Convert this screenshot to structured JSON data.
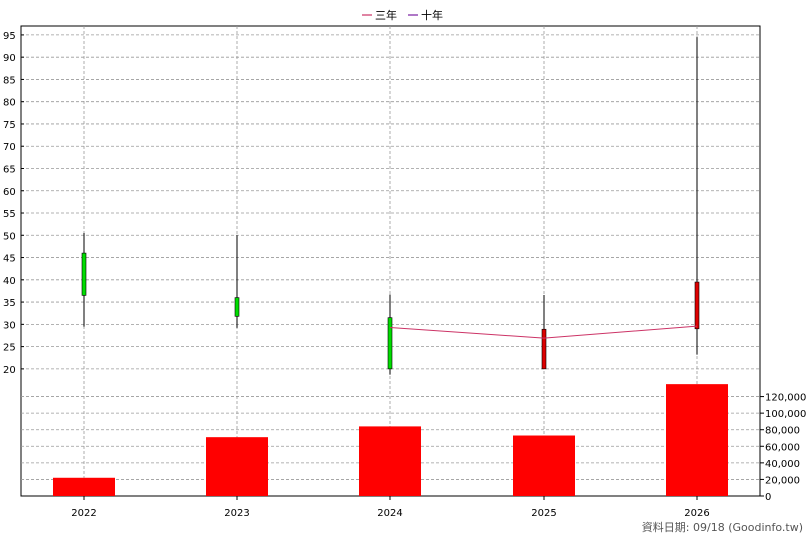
{
  "chart_data": {
    "type": "candlestick+bar",
    "legend": [
      {
        "label": "三年",
        "color": "#cc3366"
      },
      {
        "label": "十年",
        "color": "#7a1fa2"
      }
    ],
    "categories": [
      "2022",
      "2023",
      "2024",
      "2025",
      "2026"
    ],
    "candles": [
      {
        "year": "2022",
        "open": 46,
        "close": 36.5,
        "high": 50.5,
        "low": 29.5,
        "color": "#00dd00"
      },
      {
        "year": "2023",
        "open": 36,
        "close": 31.8,
        "high": 50,
        "low": 29.2,
        "color": "#00dd00"
      },
      {
        "year": "2024",
        "open": 31.5,
        "close": 20,
        "high": 36.7,
        "low": 18.7,
        "color": "#00dd00"
      },
      {
        "year": "2025",
        "open": 20,
        "close": 28.9,
        "high": 36.6,
        "low": 20,
        "color": "#dd0000"
      },
      {
        "year": "2026",
        "open": 29,
        "close": 39.5,
        "high": 94.5,
        "low": 23.2,
        "color": "#dd0000"
      }
    ],
    "three_year_line": {
      "name": "三年",
      "x": [
        "2024",
        "2025",
        "2026"
      ],
      "values": [
        29.3,
        26.9,
        29.6
      ],
      "color": "#cc3366"
    },
    "price_axis": {
      "ticks": [
        20,
        25,
        30,
        35,
        40,
        45,
        50,
        55,
        60,
        65,
        70,
        75,
        80,
        85,
        90,
        95
      ],
      "range": [
        17.5,
        97
      ]
    },
    "volume": {
      "values": [
        22000,
        71000,
        84000,
        73000,
        135000
      ],
      "color": "#ff0000",
      "ticks": [
        0,
        20000,
        40000,
        60000,
        80000,
        100000,
        120000
      ],
      "tick_labels": [
        "0",
        "20,000",
        "40,000",
        "60,000",
        "80,000",
        "100,000",
        "120,000"
      ],
      "range": [
        0,
        140000
      ]
    },
    "grid": true
  },
  "footer": {
    "text": "資料日期: 09/18  (Goodinfo.tw)"
  }
}
